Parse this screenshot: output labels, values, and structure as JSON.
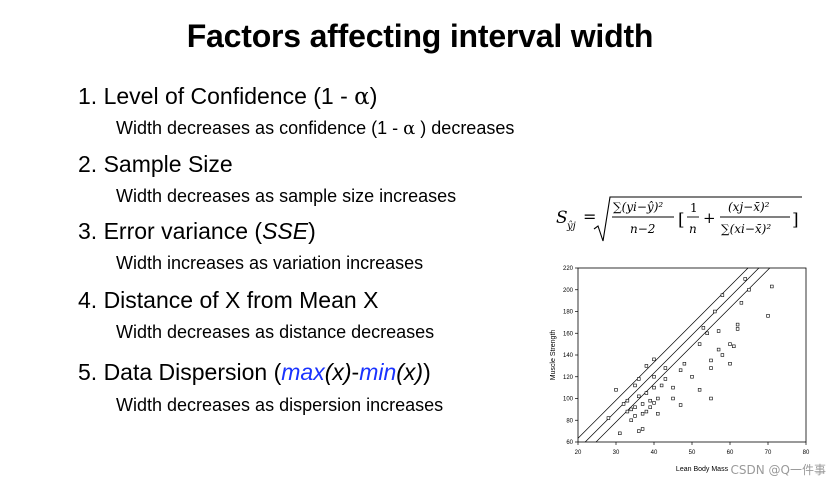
{
  "title": "Factors affecting interval width",
  "factors": [
    {
      "heading_pre": "1. Level of Confidence (1 - ",
      "heading_alpha": "α",
      "heading_post": ")",
      "detail_pre": "Width decreases as confidence (1 - ",
      "detail_alpha": "α",
      "detail_post": " ) decreases"
    },
    {
      "heading": "2. Sample Size",
      "detail": "Width decreases as sample size increases"
    },
    {
      "heading_pre": "3. Error variance (",
      "heading_italic": "SSE",
      "heading_post": ")",
      "detail": "Width increases as variation increases"
    },
    {
      "heading": "4. Distance of X from Mean X",
      "detail": "Width decreases as distance decreases"
    },
    {
      "heading_pre": "5. Data Dispersion (",
      "max": "max",
      "x1": "(x)",
      "dash": "-",
      "min": "min",
      "x2": "(x)",
      "heading_post": ")",
      "detail": "Width decreases as dispersion increases"
    }
  ],
  "formula": {
    "lhs_s": "S",
    "lhs_sub": "ŷj",
    "eq": "=",
    "num1": "∑(yi−ŷ)²",
    "den1": "n−2",
    "bracket_open": "[",
    "num2": "1",
    "den2": "n",
    "plus": "+",
    "num3": "(xj−x̄)²",
    "den3": "∑(xi−x̄)²",
    "bracket_close": "]"
  },
  "chart_data": {
    "type": "scatter",
    "xlabel": "Lean Body Mass",
    "ylabel": "Muscle Strength",
    "xlim": [
      20,
      80
    ],
    "ylim": [
      60,
      220
    ],
    "xticks": [
      "20",
      "30",
      "40",
      "50",
      "60",
      "70",
      "80"
    ],
    "yticks": [
      "60",
      "80",
      "100",
      "120",
      "140",
      "160",
      "180",
      "200",
      "220"
    ],
    "points": [
      [
        28,
        82
      ],
      [
        30,
        108
      ],
      [
        31,
        68
      ],
      [
        32,
        95
      ],
      [
        33,
        88
      ],
      [
        33,
        98
      ],
      [
        34,
        90
      ],
      [
        34,
        80
      ],
      [
        35,
        84
      ],
      [
        35,
        92
      ],
      [
        35,
        112
      ],
      [
        36,
        102
      ],
      [
        36,
        118
      ],
      [
        36,
        70
      ],
      [
        37,
        86
      ],
      [
        37,
        95
      ],
      [
        37,
        72
      ],
      [
        38,
        88
      ],
      [
        38,
        130
      ],
      [
        38,
        105
      ],
      [
        39,
        92
      ],
      [
        39,
        98
      ],
      [
        40,
        110
      ],
      [
        40,
        96
      ],
      [
        40,
        136
      ],
      [
        40,
        120
      ],
      [
        41,
        100
      ],
      [
        41,
        86
      ],
      [
        42,
        112
      ],
      [
        43,
        128
      ],
      [
        43,
        118
      ],
      [
        45,
        110
      ],
      [
        45,
        100
      ],
      [
        47,
        94
      ],
      [
        47,
        126
      ],
      [
        48,
        132
      ],
      [
        50,
        120
      ],
      [
        52,
        150
      ],
      [
        52,
        108
      ],
      [
        53,
        165
      ],
      [
        54,
        160
      ],
      [
        55,
        100
      ],
      [
        55,
        128
      ],
      [
        55,
        135
      ],
      [
        56,
        180
      ],
      [
        57,
        162
      ],
      [
        57,
        145
      ],
      [
        58,
        195
      ],
      [
        58,
        140
      ],
      [
        60,
        132
      ],
      [
        60,
        150
      ],
      [
        61,
        148
      ],
      [
        62,
        168
      ],
      [
        62,
        164
      ],
      [
        63,
        188
      ],
      [
        64,
        210
      ],
      [
        65,
        200
      ],
      [
        70,
        176
      ],
      [
        71,
        203
      ]
    ],
    "fit_line": {
      "intercept": -16.6,
      "slope": 3.5
    },
    "band_offset": 10
  },
  "watermark": "CSDN @Q一件事"
}
